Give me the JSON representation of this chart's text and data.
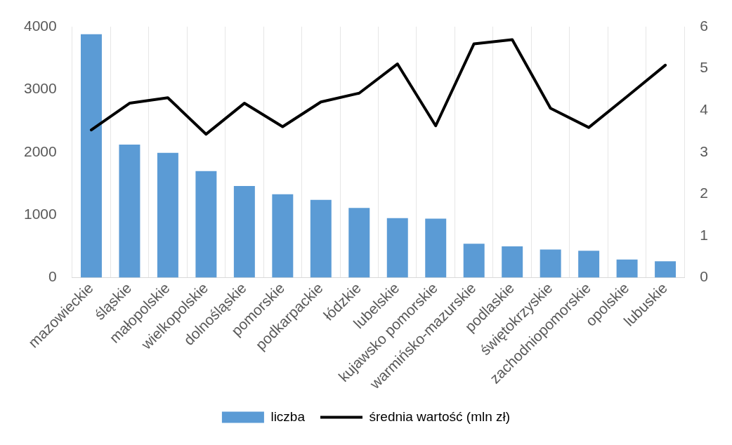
{
  "chart_data": {
    "type": "bar",
    "categories": [
      "mazowieckie",
      "śląskie",
      "małopolskie",
      "wielkopolskie",
      "dolnośląskie",
      "pomorskie",
      "podkarpackie",
      "łódzkie",
      "lubelskie",
      "kujawsko pomorskie",
      "warmińsko-mazurskie",
      "podlaskie",
      "świętokrzyskie",
      "zachodniopomorskie",
      "opolskie",
      "lubuskie"
    ],
    "series": [
      {
        "name": "liczba",
        "color": "#5b9bd5",
        "values": [
          3880,
          2120,
          1990,
          1700,
          1460,
          1330,
          1240,
          1110,
          950,
          940,
          540,
          500,
          450,
          430,
          290,
          260
        ]
      },
      {
        "name": "średnia wartość (mln zł)",
        "type": "line",
        "axis": "y2",
        "color": "#000000",
        "values": [
          3.53,
          4.17,
          4.3,
          3.43,
          4.17,
          3.61,
          4.2,
          4.41,
          5.11,
          3.63,
          5.59,
          5.69,
          4.05,
          3.59,
          4.33,
          5.08
        ]
      }
    ],
    "ylim": [
      0,
      4000
    ],
    "yticks": [
      0,
      1000,
      2000,
      3000,
      4000
    ],
    "y2lim": [
      0,
      6
    ],
    "y2ticks": [
      0,
      1,
      2,
      3,
      4,
      5,
      6
    ],
    "grid": "x",
    "legend": "bottom",
    "marker": "none",
    "line_style": "solid"
  }
}
